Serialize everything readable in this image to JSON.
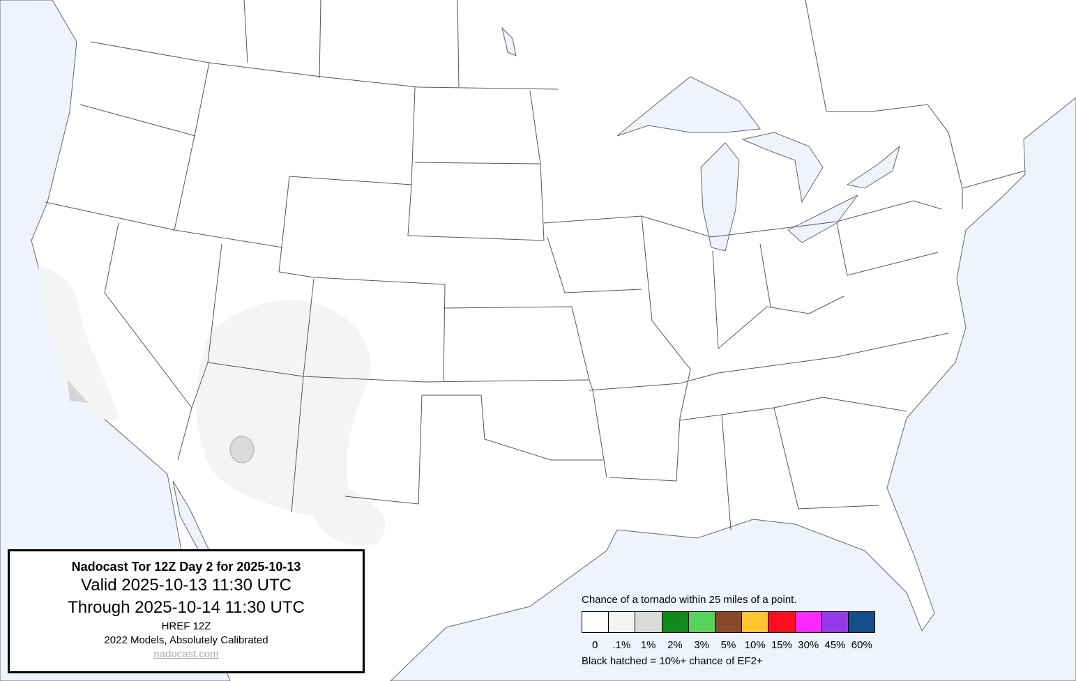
{
  "title_box": {
    "title": "Nadocast Tor 12Z Day 2 for 2025-10-13",
    "valid": "Valid 2025-10-13 11:30 UTC",
    "through": "Through 2025-10-14 11:30 UTC",
    "model": "HREF 12Z",
    "calibration": "2022 Models, Absolutely Calibrated",
    "link": "nadocast.com"
  },
  "legend": {
    "heading": "Chance of a tornado within 25 miles of a point.",
    "items": [
      {
        "label": "0",
        "color": "#ffffff"
      },
      {
        "label": ".1%",
        "color": "#f4f4f4"
      },
      {
        "label": "1%",
        "color": "#dadada"
      },
      {
        "label": "2%",
        "color": "#108a18"
      },
      {
        "label": "3%",
        "color": "#56d359"
      },
      {
        "label": "5%",
        "color": "#8a4a2a"
      },
      {
        "label": "10%",
        "color": "#fec52f"
      },
      {
        "label": "15%",
        "color": "#fc0e1e"
      },
      {
        "label": "30%",
        "color": "#fc28fc"
      },
      {
        "label": "45%",
        "color": "#943aeb"
      },
      {
        "label": "60%",
        "color": "#134f8a"
      }
    ],
    "note": "Black hatched = 10%+ chance of EF2+"
  },
  "colors": {
    "water": "#eff3fe",
    "land": "#ffffff",
    "border": "#555555"
  },
  "forecast_areas": [
    {
      "region": "Southwest US (Arizona, Utah, New Mexico, West Texas, California)",
      "probability": ".1%"
    },
    {
      "region": "Central Arizona",
      "probability": "1%"
    },
    {
      "region": "Southern California coast",
      "probability": "1%"
    }
  ]
}
